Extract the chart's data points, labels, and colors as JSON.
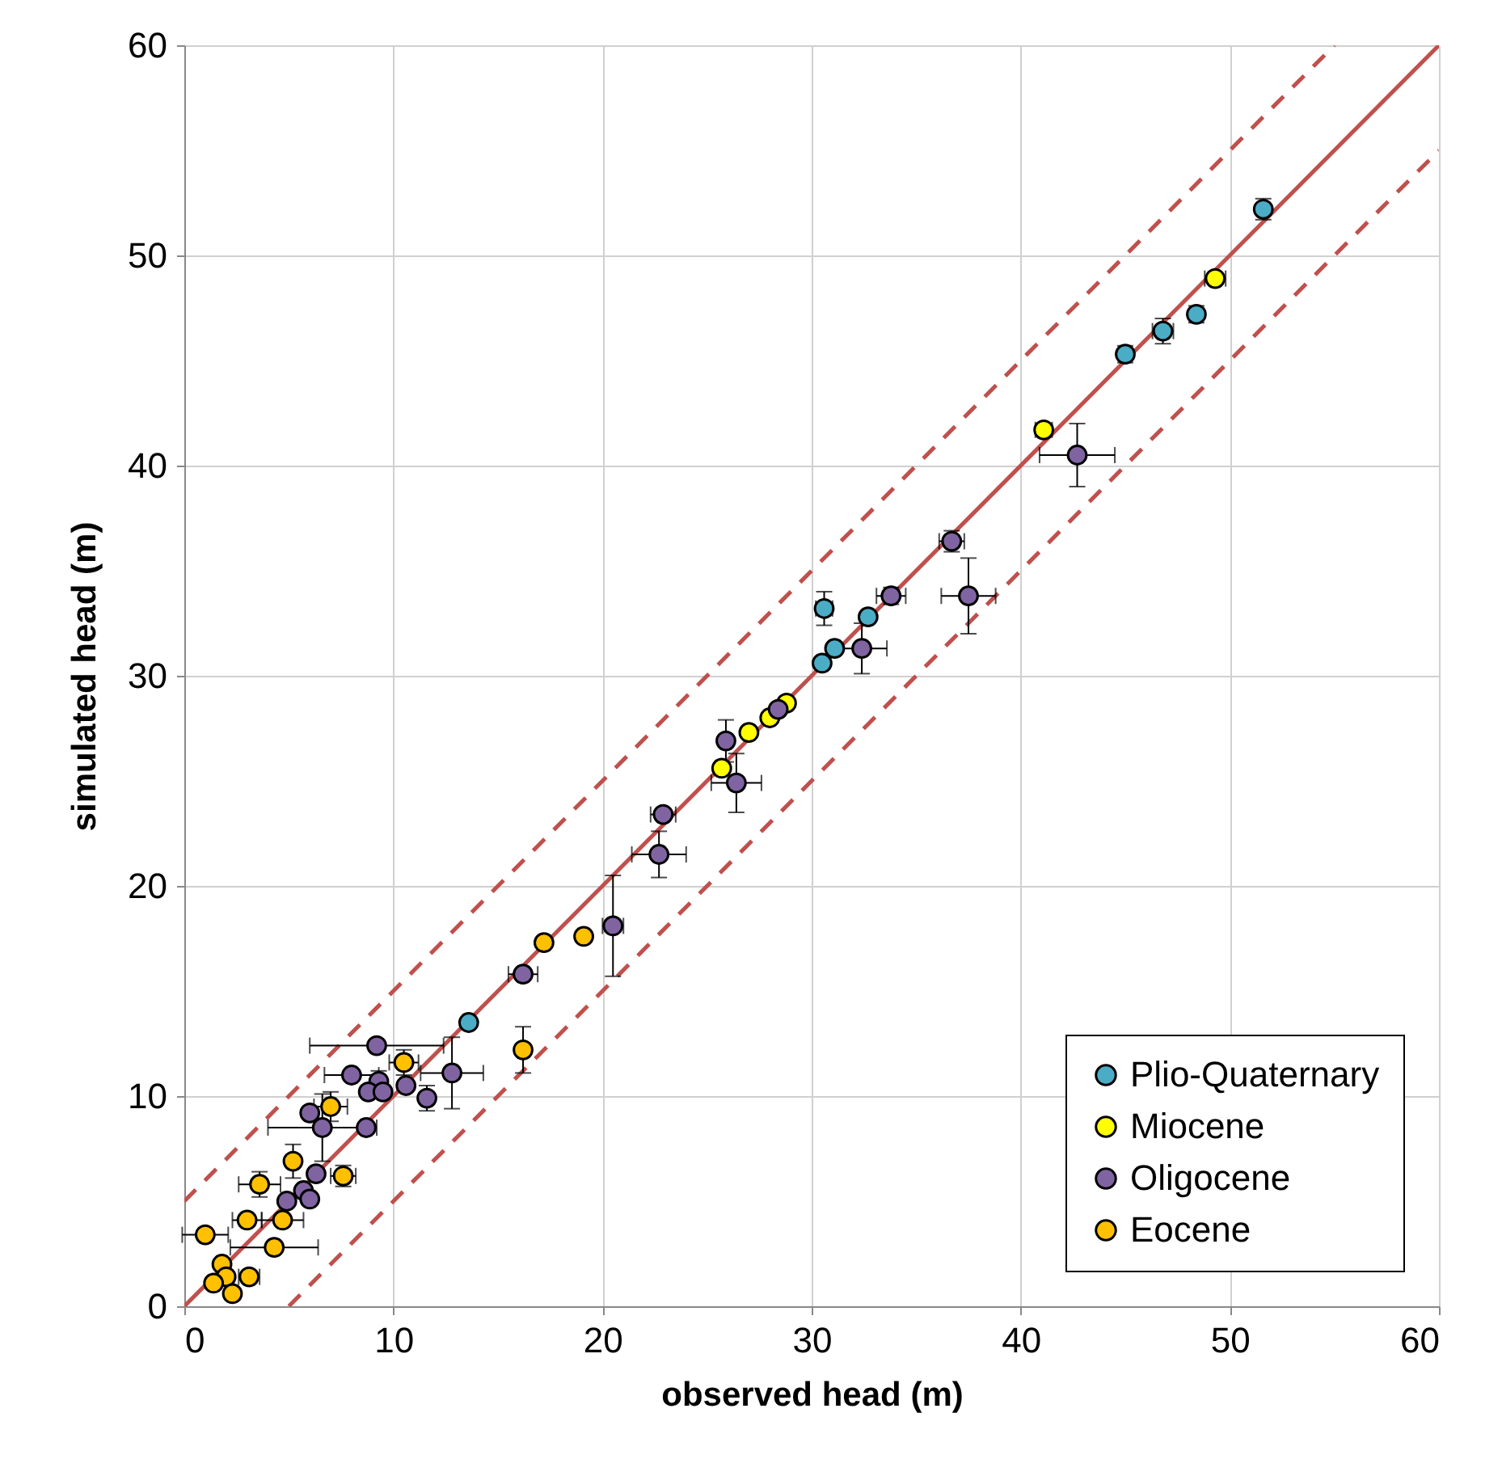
{
  "chart_data": {
    "type": "scatter",
    "xlabel": "observed head (m)",
    "ylabel": "simulated head (m)",
    "xlim": [
      0,
      60
    ],
    "ylim": [
      0,
      60
    ],
    "xticks": [
      0,
      10,
      20,
      30,
      40,
      50,
      60
    ],
    "yticks": [
      0,
      10,
      20,
      30,
      40,
      50,
      60
    ],
    "grid": true,
    "legend": "bottom right",
    "marker": "circle",
    "series": [
      {
        "type": "line",
        "color": "#c0504d",
        "line_style": "solid",
        "marker": "none",
        "x": [
          0,
          60
        ],
        "values": [
          0,
          60
        ]
      },
      {
        "type": "line",
        "color": "#c0504d",
        "line_style": "dashed",
        "marker": "none",
        "x": [
          0,
          55
        ],
        "values": [
          5,
          60
        ]
      },
      {
        "type": "line",
        "color": "#c0504d",
        "line_style": "dashed",
        "marker": "none",
        "x": [
          5,
          60
        ],
        "values": [
          0,
          55
        ]
      },
      {
        "name": "Plio-Quaternary",
        "color": "#4bacc6",
        "x": [
          13.6,
          30.5,
          31.1,
          32.7,
          30.6,
          45.0,
          46.8,
          48.4,
          51.6
        ],
        "values": [
          13.5,
          30.6,
          31.3,
          32.8,
          33.2,
          45.3,
          46.4,
          47.2,
          52.2
        ],
        "errors": [
          null,
          null,
          null,
          null,
          0.8,
          0.4,
          0.6,
          0.4,
          0.5
        ],
        "xerrors": [
          null,
          null,
          null,
          null,
          0.4,
          null,
          0.5,
          null,
          null
        ]
      },
      {
        "name": "Miocene",
        "color": "#ffff00",
        "x": [
          41.1,
          49.3,
          25.7,
          27.0,
          28.0,
          28.8
        ],
        "values": [
          41.7,
          48.9,
          25.6,
          27.3,
          28.0,
          28.7
        ],
        "errors": [
          null,
          null,
          null,
          null,
          null,
          null
        ],
        "xerrors": [
          0.4,
          0.5,
          0.3,
          null,
          null,
          null
        ]
      },
      {
        "name": "Oligocene",
        "color": "#8064a2",
        "x": [
          42.7,
          36.7,
          33.8,
          37.5,
          32.4,
          28.4,
          25.9,
          26.4,
          22.9,
          22.7,
          20.5,
          16.2,
          9.2,
          12.8,
          8.0,
          9.3,
          8.8,
          9.5,
          10.6,
          11.6,
          6.0,
          6.6,
          8.7,
          6.3,
          5.7,
          6.0,
          4.9
        ],
        "values": [
          40.5,
          36.4,
          33.8,
          33.8,
          31.3,
          28.4,
          26.9,
          24.9,
          23.4,
          21.5,
          18.1,
          15.8,
          12.4,
          11.1,
          11.0,
          10.7,
          10.2,
          10.2,
          10.5,
          9.9,
          9.2,
          8.5,
          8.5,
          6.3,
          5.5,
          5.1,
          5.0
        ],
        "errors": [
          1.5,
          0.5,
          0.4,
          1.8,
          1.2,
          null,
          1.0,
          1.4,
          null,
          1.1,
          2.4,
          null,
          null,
          1.7,
          null,
          0.5,
          null,
          null,
          null,
          0.6,
          null,
          1.6,
          null,
          null,
          null,
          null,
          null
        ],
        "xerrors": [
          1.8,
          0.6,
          0.7,
          1.3,
          1.2,
          null,
          null,
          1.2,
          0.6,
          1.3,
          0.5,
          0.7,
          3.2,
          1.5,
          1.3,
          null,
          null,
          null,
          null,
          null,
          null,
          2.6,
          null,
          null,
          null,
          null,
          null
        ]
      },
      {
        "name": "Eocene",
        "color": "#ffc000",
        "x": [
          17.2,
          19.1,
          10.5,
          16.2,
          7.0,
          5.2,
          3.6,
          7.6,
          3.0,
          4.7,
          1.0,
          4.3,
          1.8,
          2.0,
          1.4,
          3.1,
          2.3
        ],
        "values": [
          17.3,
          17.6,
          11.6,
          12.2,
          9.5,
          6.9,
          5.8,
          6.2,
          4.1,
          4.1,
          3.4,
          2.8,
          2.0,
          1.4,
          1.1,
          1.4,
          0.6
        ],
        "errors": [
          null,
          null,
          0.6,
          1.1,
          0.7,
          0.8,
          0.6,
          0.5,
          null,
          null,
          null,
          null,
          null,
          null,
          null,
          null,
          null
        ],
        "xerrors": [
          null,
          null,
          0.7,
          null,
          0.8,
          null,
          1.0,
          0.6,
          0.7,
          1.0,
          1.1,
          2.1,
          null,
          null,
          null,
          0.5,
          null
        ]
      }
    ]
  }
}
